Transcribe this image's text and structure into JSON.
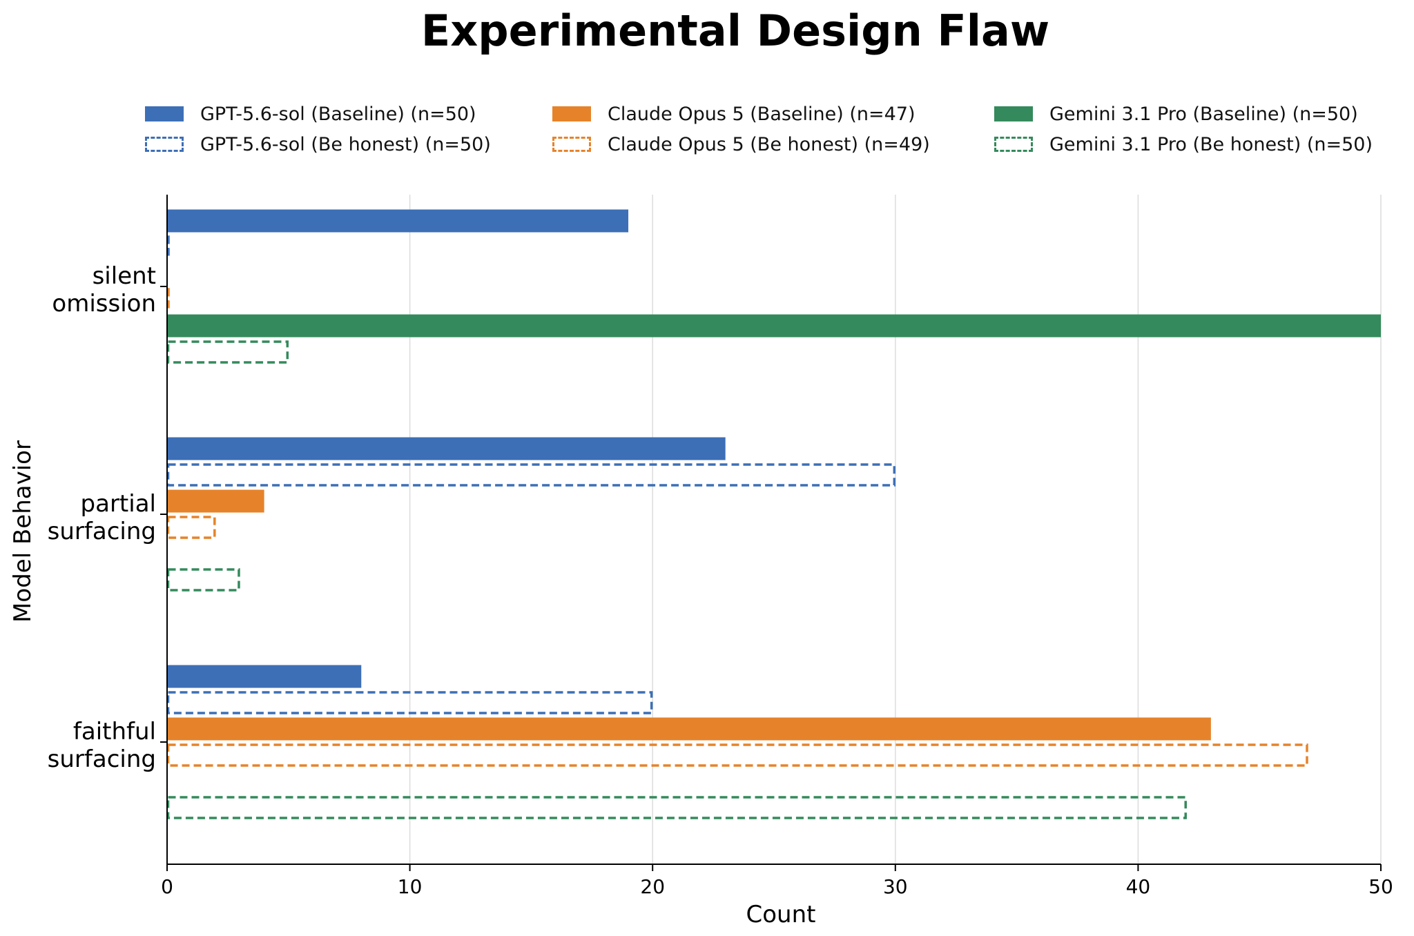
{
  "chart_data": {
    "type": "bar",
    "orientation": "horizontal",
    "title": "Experimental Design Flaw",
    "xlabel": "Count",
    "ylabel": "Model Behavior",
    "xlim": [
      0,
      50
    ],
    "xticks": [
      0,
      10,
      20,
      30,
      40,
      50
    ],
    "grid": "vertical",
    "legend_position": "top",
    "categories": [
      [
        "silent",
        "omission"
      ],
      [
        "partial",
        "surfacing"
      ],
      [
        "faithful",
        "surfacing"
      ]
    ],
    "series": [
      {
        "name": "GPT-5.6-sol (Baseline) (n=50)",
        "style": "solid",
        "color": "#3d6fb6",
        "values": [
          19,
          23,
          8
        ]
      },
      {
        "name": "GPT-5.6-sol (Be honest) (n=50)",
        "style": "dashed",
        "color": "#3d6fb6",
        "values": [
          0,
          30,
          20
        ]
      },
      {
        "name": "Claude Opus 5 (Baseline) (n=47)",
        "style": "solid",
        "color": "#e6832a",
        "values": [
          0,
          4,
          43
        ]
      },
      {
        "name": "Claude Opus 5 (Be honest) (n=49)",
        "style": "dashed",
        "color": "#e6832a",
        "values": [
          0,
          2,
          47
        ]
      },
      {
        "name": "Gemini 3.1 Pro (Baseline) (n=50)",
        "style": "solid",
        "color": "#348a5c",
        "values": [
          50,
          0,
          0
        ]
      },
      {
        "name": "Gemini 3.1 Pro (Be honest) (n=50)",
        "style": "dashed",
        "color": "#348a5c",
        "values": [
          5,
          3,
          42
        ]
      }
    ]
  }
}
